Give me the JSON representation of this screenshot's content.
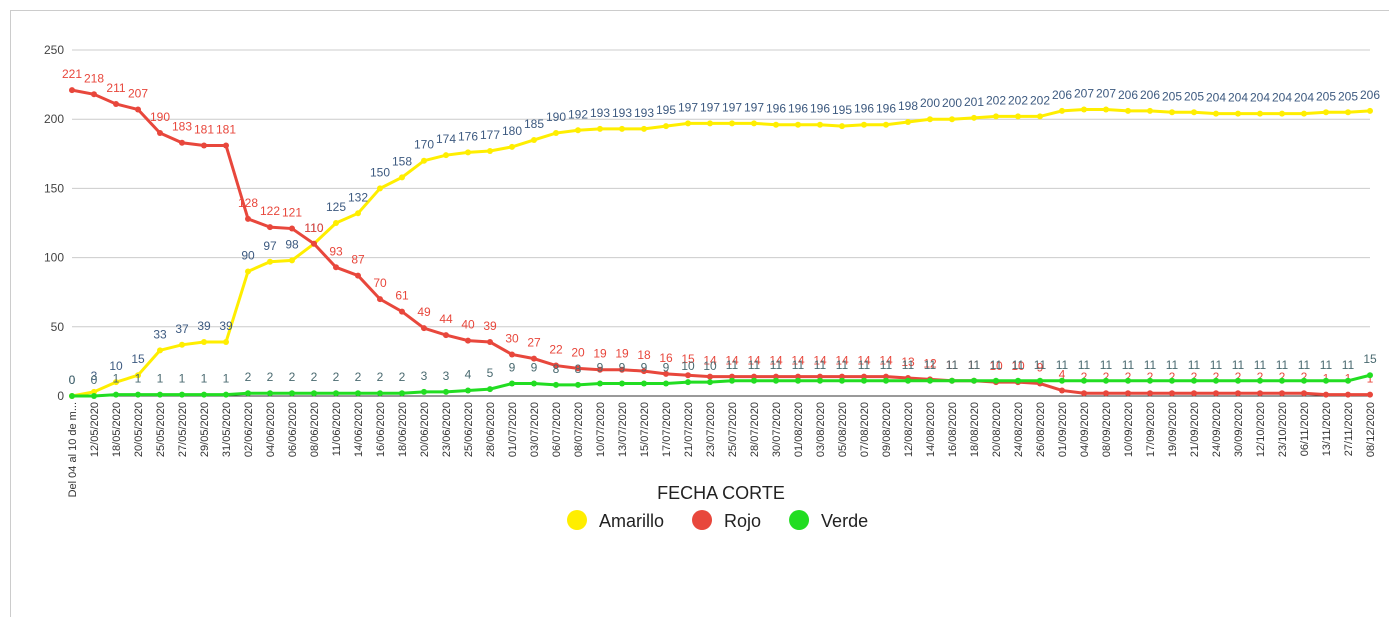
{
  "chart_data": {
    "type": "line",
    "x_label": "FECHA CORTE",
    "categories": [
      "Del 04 al 10 de m...",
      "12/05/2020",
      "18/05/2020",
      "20/05/2020",
      "25/05/2020",
      "27/05/2020",
      "29/05/2020",
      "31/05/2020",
      "02/06/2020",
      "04/06/2020",
      "06/06/2020",
      "08/06/2020",
      "11/06/2020",
      "14/06/2020",
      "16/06/2020",
      "18/06/2020",
      "20/06/2020",
      "23/06/2020",
      "25/06/2020",
      "28/06/2020",
      "01/07/2020",
      "03/07/2020",
      "06/07/2020",
      "08/07/2020",
      "10/07/2020",
      "13/07/2020",
      "15/07/2020",
      "17/07/2020",
      "21/07/2020",
      "23/07/2020",
      "25/07/2020",
      "28/07/2020",
      "30/07/2020",
      "01/08/2020",
      "03/08/2020",
      "05/08/2020",
      "07/08/2020",
      "09/08/2020",
      "12/08/2020",
      "14/08/2020",
      "16/08/2020",
      "18/08/2020",
      "20/08/2020",
      "24/08/2020",
      "26/08/2020",
      "01/09/2020",
      "04/09/2020",
      "08/09/2020",
      "10/09/2020",
      "17/09/2020",
      "19/09/2020",
      "21/09/2020",
      "24/09/2020",
      "30/09/2020",
      "12/10/2020",
      "23/10/2020",
      "06/11/2020",
      "13/11/2020",
      "27/11/2020",
      "08/12/2020"
    ],
    "series": [
      {
        "name": "Amarillo",
        "color": "#ffee00",
        "label_color": "#3d5a80",
        "values": [
          0,
          3,
          10,
          15,
          33,
          37,
          39,
          39,
          90,
          97,
          98,
          110,
          125,
          132,
          150,
          158,
          170,
          174,
          176,
          177,
          180,
          185,
          190,
          192,
          193,
          193,
          193,
          195,
          197,
          197,
          197,
          197,
          196,
          196,
          196,
          195,
          196,
          196,
          198,
          200,
          200,
          201,
          202,
          202,
          202,
          206,
          207,
          207,
          206,
          206,
          205,
          205,
          204,
          204,
          204,
          204,
          204,
          205,
          205,
          206
        ]
      },
      {
        "name": "Rojo",
        "color": "#e8473c",
        "label_color": "#e8473c",
        "values": [
          221,
          218,
          211,
          207,
          190,
          183,
          181,
          181,
          128,
          122,
          121,
          110,
          93,
          87,
          70,
          61,
          49,
          44,
          40,
          39,
          30,
          27,
          22,
          20,
          19,
          19,
          18,
          16,
          15,
          14,
          14,
          14,
          14,
          14,
          14,
          14,
          14,
          14,
          13,
          12,
          11,
          11,
          10,
          10,
          9,
          4,
          2,
          2,
          2,
          2,
          2,
          2,
          2,
          2,
          2,
          2,
          2,
          1,
          1,
          1
        ]
      },
      {
        "name": "Verde",
        "color": "#22dd22",
        "label_color": "#4a6a70",
        "values": [
          0,
          0,
          1,
          1,
          1,
          1,
          1,
          1,
          2,
          2,
          2,
          2,
          2,
          2,
          2,
          2,
          3,
          3,
          4,
          5,
          9,
          9,
          8,
          8,
          9,
          9,
          9,
          9,
          10,
          10,
          11,
          11,
          11,
          11,
          11,
          11,
          11,
          11,
          11,
          11,
          11,
          11,
          11,
          11,
          11,
          11,
          11,
          11,
          11,
          11,
          11,
          11,
          11,
          11,
          11,
          11,
          11,
          11,
          11,
          15
        ]
      }
    ],
    "ylim": [
      0,
      250
    ],
    "yticks": [
      0,
      50,
      100,
      150,
      200,
      250
    ],
    "grid": true,
    "legend": "bottom"
  }
}
